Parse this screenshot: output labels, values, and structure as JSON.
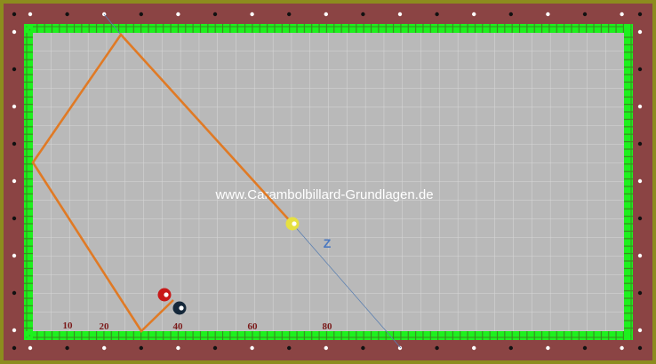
{
  "watermark": "www.Carambolbillard-Grundlagen.de",
  "path_label": "Z",
  "rail_labels": [
    "10",
    "20",
    "40",
    "60",
    "80"
  ],
  "colors": {
    "frame": "#8b4444",
    "frame_border": "#8c8c1e",
    "cushion": "#1ef01e",
    "cloth": "#b9b9b9",
    "path": "#e07a25",
    "aim_line": "#5a7fb0",
    "cue_ball": "#e6e040",
    "object_ball_red": "#c81818",
    "object_ball_black": "#15283a"
  },
  "balls": [
    {
      "name": "yellow-ball",
      "label": "cue ball"
    },
    {
      "name": "red-ball",
      "label": "object ball 1"
    },
    {
      "name": "black-ball",
      "label": "object ball 2"
    }
  ]
}
